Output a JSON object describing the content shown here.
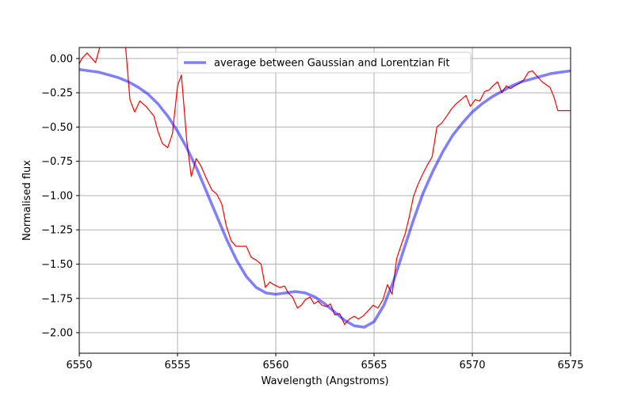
{
  "chart_data": {
    "type": "line",
    "title": "",
    "xlabel": "Wavelength (Angstroms)",
    "ylabel": "Normalised flux",
    "xlim": [
      6550,
      6575
    ],
    "ylim": [
      -2.15,
      0.08
    ],
    "grid": true,
    "legend_placement": "upper-center",
    "x_ticks": [
      6550,
      6555,
      6560,
      6565,
      6570,
      6575
    ],
    "x_tick_labels": [
      "6550",
      "6555",
      "6560",
      "6565",
      "6570",
      "6575"
    ],
    "y_ticks": [
      0.0,
      -0.25,
      -0.5,
      -0.75,
      -1.0,
      -1.25,
      -1.5,
      -1.75,
      -2.0
    ],
    "y_tick_labels": [
      "0.00",
      "−0.25",
      "−0.50",
      "−0.75",
      "−1.00",
      "−1.25",
      "−1.50",
      "−1.75",
      "−2.00"
    ],
    "series": [
      {
        "name": "",
        "color": "#ff0000",
        "line_width": 1.2,
        "opacity": 1.0,
        "x": [
          6550.0,
          6550.13,
          6550.4,
          6550.83,
          6551.08,
          6551.4,
          6551.7,
          6552.05,
          6552.35,
          6552.58,
          6552.82,
          6553.08,
          6553.4,
          6553.8,
          6554.0,
          6554.23,
          6554.5,
          6554.74,
          6555.0,
          6555.2,
          6555.47,
          6555.7,
          6555.95,
          6556.18,
          6556.45,
          6556.75,
          6557.0,
          6557.25,
          6557.48,
          6557.73,
          6557.98,
          6558.23,
          6558.5,
          6558.75,
          6559.0,
          6559.25,
          6559.47,
          6559.7,
          6559.9,
          6560.2,
          6560.45,
          6560.63,
          6560.85,
          6561.1,
          6561.3,
          6561.5,
          6561.75,
          6561.95,
          6562.15,
          6562.35,
          6562.6,
          6562.78,
          6563.0,
          6563.25,
          6563.5,
          6563.75,
          6564.0,
          6564.2,
          6564.43,
          6564.7,
          6564.95,
          6565.2,
          6565.45,
          6565.68,
          6565.92,
          6566.15,
          6566.38,
          6566.58,
          6566.8,
          6567.0,
          6567.2,
          6567.45,
          6567.7,
          6567.95,
          6568.2,
          6568.45,
          6568.7,
          6568.93,
          6569.18,
          6569.43,
          6569.68,
          6569.9,
          6570.15,
          6570.38,
          6570.63,
          6570.85,
          6571.05,
          6571.28,
          6571.5,
          6571.73,
          6571.95,
          6572.15,
          6572.4,
          6572.6,
          6572.85,
          6573.05,
          6573.3,
          6573.55,
          6573.75,
          6573.95,
          6574.15,
          6574.35,
          6574.6,
          6574.83,
          6575.0
        ],
        "y": [
          -0.04,
          0.0,
          0.04,
          -0.03,
          0.1,
          0.22,
          0.16,
          0.3,
          0.1,
          -0.3,
          -0.39,
          -0.31,
          -0.35,
          -0.42,
          -0.53,
          -0.62,
          -0.65,
          -0.55,
          -0.2,
          -0.12,
          -0.6,
          -0.86,
          -0.73,
          -0.78,
          -0.87,
          -0.96,
          -0.99,
          -1.06,
          -1.22,
          -1.33,
          -1.37,
          -1.37,
          -1.37,
          -1.45,
          -1.47,
          -1.5,
          -1.67,
          -1.63,
          -1.65,
          -1.67,
          -1.66,
          -1.71,
          -1.74,
          -1.82,
          -1.8,
          -1.76,
          -1.74,
          -1.79,
          -1.77,
          -1.8,
          -1.81,
          -1.79,
          -1.87,
          -1.86,
          -1.94,
          -1.9,
          -1.88,
          -1.9,
          -1.88,
          -1.84,
          -1.8,
          -1.82,
          -1.76,
          -1.65,
          -1.72,
          -1.46,
          -1.36,
          -1.28,
          -1.15,
          -1.01,
          -0.93,
          -0.85,
          -0.78,
          -0.72,
          -0.5,
          -0.47,
          -0.42,
          -0.37,
          -0.33,
          -0.3,
          -0.27,
          -0.35,
          -0.3,
          -0.31,
          -0.24,
          -0.23,
          -0.2,
          -0.17,
          -0.25,
          -0.2,
          -0.22,
          -0.2,
          -0.18,
          -0.16,
          -0.1,
          -0.09,
          -0.13,
          -0.17,
          -0.19,
          -0.21,
          -0.28,
          -0.38,
          -0.38,
          -0.38,
          -0.38
        ]
      },
      {
        "name": "average between Gaussian and Lorentzian Fit",
        "color": "#0000ff",
        "line_width": 3.5,
        "opacity": 0.5,
        "x": [
          6550.0,
          6550.5,
          6551.0,
          6551.5,
          6552.0,
          6552.5,
          6553.0,
          6553.5,
          6554.0,
          6554.5,
          6555.0,
          6555.5,
          6556.0,
          6556.5,
          6557.0,
          6557.5,
          6558.0,
          6558.5,
          6559.0,
          6559.5,
          6560.0,
          6560.5,
          6561.0,
          6561.5,
          6562.0,
          6562.5,
          6563.0,
          6563.5,
          6564.0,
          6564.5,
          6565.0,
          6565.5,
          6566.0,
          6566.5,
          6567.0,
          6567.5,
          6568.0,
          6568.5,
          6569.0,
          6569.5,
          6570.0,
          6570.5,
          6571.0,
          6571.5,
          6572.0,
          6572.5,
          6573.0,
          6573.5,
          6574.0,
          6574.5,
          6575.0
        ],
        "y": [
          -0.08,
          -0.09,
          -0.1,
          -0.12,
          -0.14,
          -0.17,
          -0.21,
          -0.26,
          -0.33,
          -0.42,
          -0.53,
          -0.66,
          -0.81,
          -0.98,
          -1.15,
          -1.32,
          -1.47,
          -1.59,
          -1.67,
          -1.71,
          -1.72,
          -1.71,
          -1.7,
          -1.71,
          -1.74,
          -1.79,
          -1.85,
          -1.91,
          -1.95,
          -1.96,
          -1.92,
          -1.8,
          -1.62,
          -1.4,
          -1.18,
          -0.98,
          -0.82,
          -0.68,
          -0.56,
          -0.47,
          -0.39,
          -0.33,
          -0.28,
          -0.24,
          -0.2,
          -0.17,
          -0.15,
          -0.13,
          -0.11,
          -0.1,
          -0.09
        ]
      }
    ]
  }
}
